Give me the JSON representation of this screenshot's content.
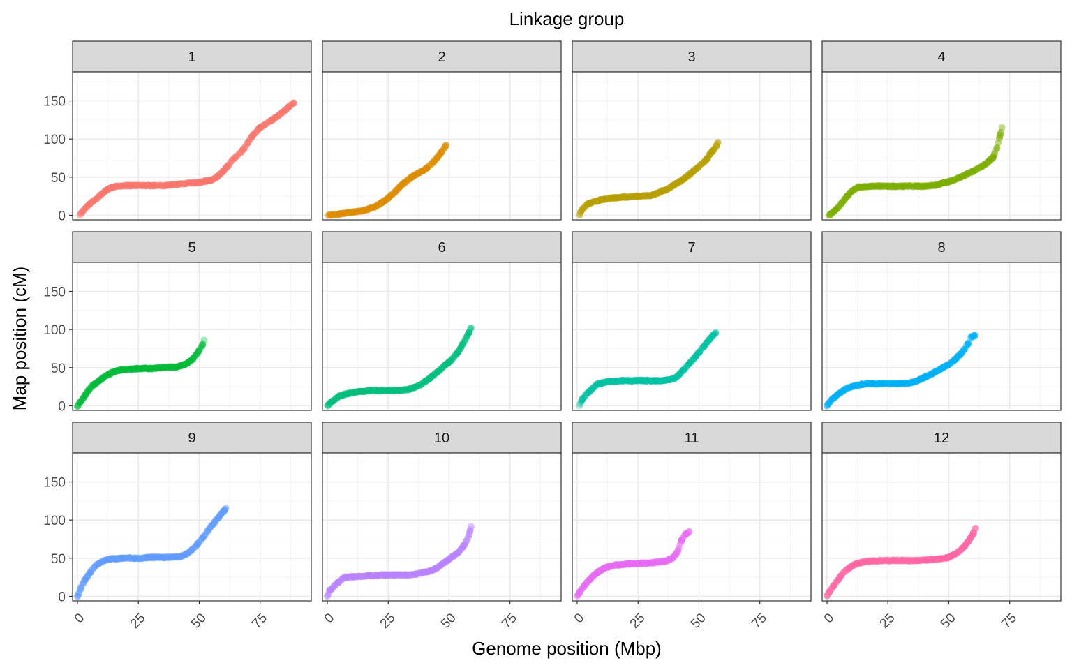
{
  "chart_data": {
    "type": "scatter",
    "title": "Linkage group",
    "xlabel": "Genome position (Mbp)",
    "ylabel": "Map position (cM)",
    "xlim": [
      -2,
      96
    ],
    "ylim": [
      -6,
      188
    ],
    "x_ticks": [
      0,
      25,
      50,
      75
    ],
    "y_ticks": [
      0,
      50,
      100,
      150
    ],
    "grid": true,
    "layout": "facet grid 3 rows x 4 columns, shared axes",
    "panels": [
      {
        "label": "1",
        "color": "#F8766D",
        "curve": [
          [
            1,
            0
          ],
          [
            2,
            5
          ],
          [
            4,
            12
          ],
          [
            6,
            18
          ],
          [
            8,
            22
          ],
          [
            10,
            28
          ],
          [
            12,
            33
          ],
          [
            14,
            37
          ],
          [
            16,
            38
          ],
          [
            20,
            39
          ],
          [
            24,
            39
          ],
          [
            30,
            39
          ],
          [
            35,
            39
          ],
          [
            40,
            40
          ],
          [
            45,
            42
          ],
          [
            50,
            43
          ],
          [
            55,
            46
          ],
          [
            58,
            52
          ],
          [
            61,
            62
          ],
          [
            64,
            74
          ],
          [
            67,
            82
          ],
          [
            70,
            95
          ],
          [
            72,
            105
          ],
          [
            75,
            115
          ],
          [
            78,
            121
          ],
          [
            80,
            125
          ],
          [
            83,
            132
          ],
          [
            86,
            140
          ],
          [
            89,
            148
          ]
        ]
      },
      {
        "label": "2",
        "color": "#DE8C00",
        "curve": [
          [
            0,
            0
          ],
          [
            4,
            1
          ],
          [
            8,
            3
          ],
          [
            12,
            5
          ],
          [
            16,
            7
          ],
          [
            20,
            12
          ],
          [
            24,
            20
          ],
          [
            27,
            28
          ],
          [
            30,
            38
          ],
          [
            33,
            46
          ],
          [
            36,
            53
          ],
          [
            40,
            60
          ],
          [
            43,
            68
          ],
          [
            46,
            79
          ],
          [
            48,
            88
          ],
          [
            49,
            93
          ]
        ]
      },
      {
        "label": "3",
        "color": "#B79F00",
        "curve": [
          [
            1,
            0
          ],
          [
            2,
            8
          ],
          [
            4,
            14
          ],
          [
            7,
            18
          ],
          [
            11,
            21
          ],
          [
            16,
            23
          ],
          [
            20,
            24
          ],
          [
            26,
            25
          ],
          [
            30,
            26
          ],
          [
            34,
            30
          ],
          [
            38,
            36
          ],
          [
            41,
            42
          ],
          [
            44,
            48
          ],
          [
            47,
            56
          ],
          [
            50,
            64
          ],
          [
            53,
            73
          ],
          [
            55,
            82
          ],
          [
            57,
            90
          ],
          [
            58,
            96
          ]
        ]
      },
      {
        "label": "4",
        "color": "#7CAE00",
        "curve": [
          [
            1,
            0
          ],
          [
            3,
            5
          ],
          [
            5,
            12
          ],
          [
            7,
            20
          ],
          [
            9,
            28
          ],
          [
            11,
            33
          ],
          [
            13,
            37
          ],
          [
            20,
            38
          ],
          [
            25,
            38
          ],
          [
            30,
            38
          ],
          [
            35,
            38
          ],
          [
            40,
            38
          ],
          [
            45,
            40
          ],
          [
            50,
            44
          ],
          [
            55,
            50
          ],
          [
            60,
            58
          ],
          [
            65,
            67
          ],
          [
            68,
            75
          ],
          [
            70,
            90
          ],
          [
            71,
            105
          ],
          [
            72,
            118
          ]
        ]
      },
      {
        "label": "5",
        "color": "#00BA38",
        "curve": [
          [
            0,
            0
          ],
          [
            2,
            8
          ],
          [
            4,
            18
          ],
          [
            6,
            26
          ],
          [
            9,
            33
          ],
          [
            12,
            40
          ],
          [
            15,
            45
          ],
          [
            18,
            47
          ],
          [
            22,
            48
          ],
          [
            27,
            49
          ],
          [
            31,
            49
          ],
          [
            35,
            50
          ],
          [
            40,
            51
          ],
          [
            44,
            54
          ],
          [
            47,
            60
          ],
          [
            49,
            68
          ],
          [
            51,
            78
          ],
          [
            52,
            86
          ]
        ]
      },
      {
        "label": "6",
        "color": "#00BF7D",
        "curve": [
          [
            0,
            0
          ],
          [
            2,
            6
          ],
          [
            4,
            11
          ],
          [
            7,
            15
          ],
          [
            10,
            17
          ],
          [
            14,
            19
          ],
          [
            18,
            20
          ],
          [
            22,
            20
          ],
          [
            26,
            20
          ],
          [
            30,
            20
          ],
          [
            34,
            22
          ],
          [
            38,
            27
          ],
          [
            42,
            36
          ],
          [
            45,
            44
          ],
          [
            48,
            52
          ],
          [
            51,
            60
          ],
          [
            54,
            72
          ],
          [
            56,
            83
          ],
          [
            58,
            95
          ],
          [
            59,
            103
          ]
        ]
      },
      {
        "label": "7",
        "color": "#00C1A3",
        "curve": [
          [
            1,
            0
          ],
          [
            2,
            8
          ],
          [
            4,
            16
          ],
          [
            6,
            22
          ],
          [
            8,
            28
          ],
          [
            11,
            31
          ],
          [
            15,
            32
          ],
          [
            20,
            33
          ],
          [
            25,
            33
          ],
          [
            30,
            33
          ],
          [
            34,
            33
          ],
          [
            38,
            34
          ],
          [
            41,
            38
          ],
          [
            43,
            45
          ],
          [
            46,
            55
          ],
          [
            49,
            66
          ],
          [
            52,
            78
          ],
          [
            55,
            90
          ],
          [
            57,
            96
          ]
        ]
      },
      {
        "label": "8",
        "color": "#00B0F6",
        "curve": [
          [
            0,
            0
          ],
          [
            2,
            8
          ],
          [
            4,
            14
          ],
          [
            7,
            21
          ],
          [
            10,
            25
          ],
          [
            14,
            28
          ],
          [
            18,
            29
          ],
          [
            22,
            29
          ],
          [
            26,
            29
          ],
          [
            30,
            29
          ],
          [
            34,
            30
          ],
          [
            38,
            34
          ],
          [
            42,
            40
          ],
          [
            46,
            47
          ],
          [
            50,
            54
          ],
          [
            53,
            62
          ],
          [
            56,
            72
          ],
          [
            58,
            82
          ],
          [
            59,
            90
          ],
          [
            61,
            92
          ]
        ]
      },
      {
        "label": "9",
        "color": "#619CFF",
        "curve": [
          [
            0,
            0
          ],
          [
            1,
            8
          ],
          [
            2,
            16
          ],
          [
            4,
            26
          ],
          [
            6,
            35
          ],
          [
            8,
            42
          ],
          [
            11,
            47
          ],
          [
            14,
            49
          ],
          [
            18,
            50
          ],
          [
            22,
            50
          ],
          [
            26,
            50
          ],
          [
            30,
            51
          ],
          [
            34,
            51
          ],
          [
            38,
            51
          ],
          [
            42,
            52
          ],
          [
            45,
            56
          ],
          [
            48,
            64
          ],
          [
            51,
            75
          ],
          [
            54,
            88
          ],
          [
            57,
            100
          ],
          [
            59,
            108
          ],
          [
            61,
            115
          ]
        ]
      },
      {
        "label": "10",
        "color": "#B983FF",
        "curve": [
          [
            0,
            0
          ],
          [
            1,
            8
          ],
          [
            3,
            14
          ],
          [
            5,
            20
          ],
          [
            7,
            25
          ],
          [
            18,
            27
          ],
          [
            22,
            28
          ],
          [
            26,
            28
          ],
          [
            30,
            28
          ],
          [
            34,
            28
          ],
          [
            38,
            30
          ],
          [
            42,
            33
          ],
          [
            45,
            37
          ],
          [
            48,
            44
          ],
          [
            51,
            51
          ],
          [
            54,
            58
          ],
          [
            56,
            66
          ],
          [
            58,
            78
          ],
          [
            59,
            92
          ]
        ]
      },
      {
        "label": "11",
        "color": "#E76BF3",
        "curve": [
          [
            0,
            0
          ],
          [
            1,
            5
          ],
          [
            2,
            10
          ],
          [
            4,
            18
          ],
          [
            6,
            25
          ],
          [
            9,
            33
          ],
          [
            12,
            38
          ],
          [
            16,
            41
          ],
          [
            20,
            42
          ],
          [
            25,
            43
          ],
          [
            30,
            44
          ],
          [
            34,
            45
          ],
          [
            37,
            47
          ],
          [
            39,
            50
          ],
          [
            41,
            57
          ],
          [
            42,
            66
          ],
          [
            43,
            74
          ],
          [
            44,
            80
          ],
          [
            46,
            85
          ]
        ]
      },
      {
        "label": "12",
        "color": "#FF67A4",
        "curve": [
          [
            0,
            0
          ],
          [
            1,
            6
          ],
          [
            3,
            15
          ],
          [
            5,
            24
          ],
          [
            7,
            32
          ],
          [
            9,
            37
          ],
          [
            11,
            41
          ],
          [
            13,
            44
          ],
          [
            18,
            46
          ],
          [
            22,
            47
          ],
          [
            26,
            47
          ],
          [
            30,
            47
          ],
          [
            36,
            47
          ],
          [
            42,
            48
          ],
          [
            47,
            49
          ],
          [
            50,
            51
          ],
          [
            53,
            56
          ],
          [
            56,
            64
          ],
          [
            58,
            72
          ],
          [
            60,
            82
          ],
          [
            61,
            90
          ]
        ]
      }
    ]
  }
}
